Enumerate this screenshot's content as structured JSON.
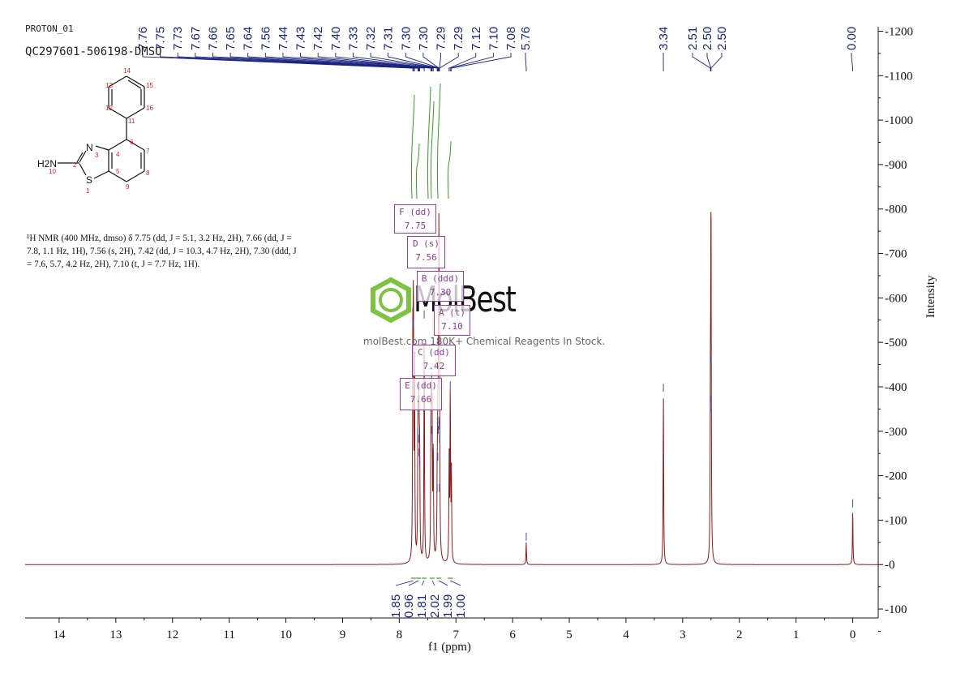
{
  "header": {
    "title": "PROTON_01",
    "sample": "QC297601-506198-DMSO"
  },
  "nmr_description": "¹H NMR (400 MHz, dmso) δ 7.75 (dd, J = 5.1, 3.2 Hz, 2H), 7.66 (dd, J = 7.8, 1.1 Hz, 1H), 7.56 (s, 2H), 7.42 (dd, J = 10.3, 4.7 Hz, 2H), 7.30 (ddd, J = 7.6, 5.7, 4.2 Hz, 2H), 7.10 (t, J = 7.7 Hz, 1H).",
  "watermark": {
    "brand": "MolBest",
    "tagline": "molBest.com 180K+ Chemical Reagents In Stock."
  },
  "structure": {
    "amine_label": "H2N",
    "atoms": {
      "N": "N",
      "S": "S"
    },
    "numbers": [
      "1",
      "2",
      "3",
      "4",
      "5",
      "6",
      "7",
      "8",
      "9",
      "10",
      "11",
      "12",
      "13",
      "14",
      "15",
      "16"
    ]
  },
  "multiplet_labels": [
    {
      "id": "F",
      "label": "F (dd)",
      "shift": "7.75"
    },
    {
      "id": "D",
      "label": "D (s)",
      "shift": "7.56"
    },
    {
      "id": "B",
      "label": "B (ddd)",
      "shift": "7.30"
    },
    {
      "id": "A",
      "label": "A (t)",
      "shift": "7.10"
    },
    {
      "id": "C",
      "label": "C (dd)",
      "shift": "7.42"
    },
    {
      "id": "E",
      "label": "E (dd)",
      "shift": "7.66"
    }
  ],
  "colors": {
    "spectrum": "#8b1a1a",
    "peak_labels": "#1a237e",
    "integral": "#3a9a2a",
    "annotation": "#9b3ea5",
    "logo_green": "#7dc242"
  },
  "chart_data": {
    "type": "line",
    "xlabel": "f1 (ppm)",
    "ylabel": "Intensity",
    "xlim": [
      14.6,
      -0.45
    ],
    "ylim": [
      -120,
      1210
    ],
    "x_ticks": [
      14,
      13,
      12,
      11,
      10,
      9,
      8,
      7,
      6,
      5,
      4,
      3,
      2,
      1,
      0
    ],
    "y_ticks": [
      1200,
      1100,
      1000,
      900,
      800,
      700,
      600,
      500,
      400,
      300,
      200,
      100,
      0,
      -100
    ],
    "peaks": [
      {
        "ppm": 7.76,
        "height": 470
      },
      {
        "ppm": 7.75,
        "height": 530
      },
      {
        "ppm": 7.73,
        "height": 420
      },
      {
        "ppm": 7.67,
        "height": 285
      },
      {
        "ppm": 7.66,
        "height": 270
      },
      {
        "ppm": 7.65,
        "height": 240
      },
      {
        "ppm": 7.64,
        "height": 220
      },
      {
        "ppm": 7.56,
        "height": 550
      },
      {
        "ppm": 7.44,
        "height": 310
      },
      {
        "ppm": 7.43,
        "height": 290
      },
      {
        "ppm": 7.42,
        "height": 270
      },
      {
        "ppm": 7.4,
        "height": 250
      },
      {
        "ppm": 7.33,
        "height": 160
      },
      {
        "ppm": 7.32,
        "height": 230
      },
      {
        "ppm": 7.31,
        "height": 290
      },
      {
        "ppm": 7.3,
        "height": 310
      },
      {
        "ppm": 7.3,
        "height": 300
      },
      {
        "ppm": 7.29,
        "height": 270
      },
      {
        "ppm": 7.29,
        "height": 160
      },
      {
        "ppm": 7.12,
        "height": 230
      },
      {
        "ppm": 7.1,
        "height": 390
      },
      {
        "ppm": 7.08,
        "height": 200
      },
      {
        "ppm": 5.76,
        "height": 50
      },
      {
        "ppm": 3.34,
        "height": 385
      },
      {
        "ppm": 2.51,
        "height": 340
      },
      {
        "ppm": 2.5,
        "height": 450
      },
      {
        "ppm": 2.5,
        "height": 360
      },
      {
        "ppm": 0.0,
        "height": 125
      }
    ],
    "peak_labels": [
      {
        "ppm": 7.76,
        "label": "7.76"
      },
      {
        "ppm": 7.75,
        "label": "7.75"
      },
      {
        "ppm": 7.73,
        "label": "7.73"
      },
      {
        "ppm": 7.67,
        "label": "7.67"
      },
      {
        "ppm": 7.66,
        "label": "7.66"
      },
      {
        "ppm": 7.65,
        "label": "7.65"
      },
      {
        "ppm": 7.64,
        "label": "7.64"
      },
      {
        "ppm": 7.56,
        "label": "7.56"
      },
      {
        "ppm": 7.44,
        "label": "7.44"
      },
      {
        "ppm": 7.43,
        "label": "7.43"
      },
      {
        "ppm": 7.42,
        "label": "7.42"
      },
      {
        "ppm": 7.4,
        "label": "7.40"
      },
      {
        "ppm": 7.33,
        "label": "7.33"
      },
      {
        "ppm": 7.32,
        "label": "7.32"
      },
      {
        "ppm": 7.31,
        "label": "7.31"
      },
      {
        "ppm": 7.3,
        "label": "7.30"
      },
      {
        "ppm": 7.3,
        "label": "7.30"
      },
      {
        "ppm": 7.29,
        "label": "7.29"
      },
      {
        "ppm": 7.29,
        "label": "7.29"
      },
      {
        "ppm": 7.12,
        "label": "7.12"
      },
      {
        "ppm": 7.1,
        "label": "7.10"
      },
      {
        "ppm": 7.08,
        "label": "7.08"
      },
      {
        "ppm": 5.76,
        "label": "5.76"
      },
      {
        "ppm": 3.34,
        "label": "3.34"
      },
      {
        "ppm": 2.51,
        "label": "2.51"
      },
      {
        "ppm": 2.5,
        "label": "2.50"
      },
      {
        "ppm": 2.5,
        "label": "2.50"
      },
      {
        "ppm": 0.0,
        "label": "0.00"
      }
    ],
    "integrals": [
      {
        "ppm": 7.75,
        "value": "1.85"
      },
      {
        "ppm": 7.66,
        "value": "0.96"
      },
      {
        "ppm": 7.56,
        "value": "1.81"
      },
      {
        "ppm": 7.42,
        "value": "2.02"
      },
      {
        "ppm": 7.3,
        "value": "1.99"
      },
      {
        "ppm": 7.1,
        "value": "1.00"
      }
    ]
  }
}
